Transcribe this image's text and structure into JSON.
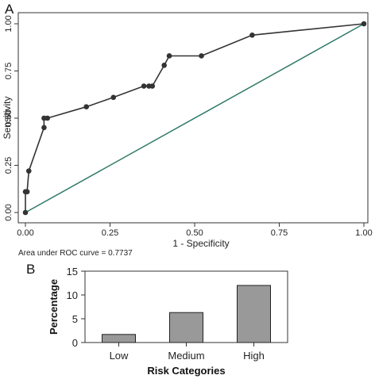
{
  "panels": {
    "a": "A",
    "b": "B"
  },
  "colors": {
    "roc_line": "#333333",
    "diagonal": "#2f7a68",
    "bar_fill": "#999999",
    "axis": "#333333"
  },
  "chart_data": [
    {
      "type": "line",
      "xlabel": "1 - Specificity",
      "ylabel": "Sensitivity",
      "xlim": [
        0,
        1
      ],
      "ylim": [
        0,
        1
      ],
      "x_ticks": [
        "0.00",
        "0.25",
        "0.50",
        "0.75",
        "1.00"
      ],
      "y_ticks": [
        "0.00",
        "0.25",
        "0.50",
        "0.75",
        "1.00"
      ],
      "annotation": "Area under ROC curve = 0.7737",
      "grid": false,
      "series": [
        {
          "points": [
            [
              0.0,
              0.0
            ],
            [
              0.0,
              0.11
            ],
            [
              0.005,
              0.11
            ],
            [
              0.01,
              0.22
            ],
            [
              0.055,
              0.45
            ],
            [
              0.055,
              0.5
            ],
            [
              0.065,
              0.5
            ],
            [
              0.18,
              0.56
            ],
            [
              0.26,
              0.61
            ],
            [
              0.35,
              0.67
            ],
            [
              0.365,
              0.67
            ],
            [
              0.375,
              0.67
            ],
            [
              0.41,
              0.78
            ],
            [
              0.425,
              0.83
            ],
            [
              0.52,
              0.83
            ],
            [
              0.67,
              0.94
            ],
            [
              1.0,
              1.0
            ]
          ]
        },
        {
          "reference_line": true,
          "points": [
            [
              0,
              0
            ],
            [
              1,
              1
            ]
          ]
        }
      ]
    },
    {
      "type": "bar",
      "categories": [
        "Low",
        "Medium",
        "High"
      ],
      "values": [
        1.7,
        6.3,
        12.0
      ],
      "xlabel": "Risk Categories",
      "ylabel": "Percentage",
      "ylim": [
        0,
        15
      ],
      "y_ticks": [
        "0",
        "5",
        "10",
        "15"
      ],
      "grid": false
    }
  ]
}
